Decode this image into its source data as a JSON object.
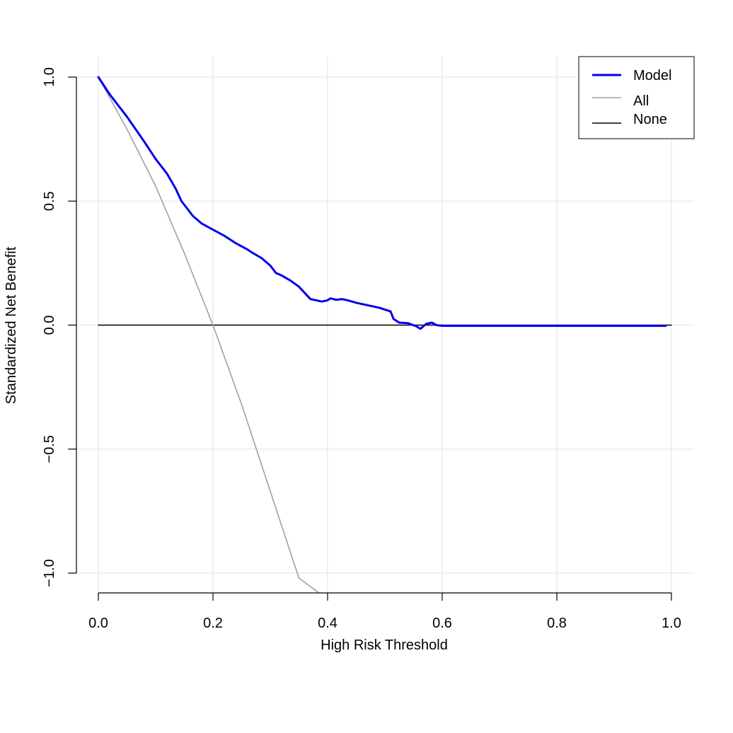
{
  "chart_data": {
    "type": "line",
    "title": "",
    "xlabel": "High Risk Threshold",
    "ylabel": "Standardized Net Benefit",
    "xlim": [
      0.0,
      1.0
    ],
    "ylim": [
      -1.0,
      1.0
    ],
    "xticks": [
      "0.0",
      "0.2",
      "0.4",
      "0.6",
      "0.8",
      "1.0"
    ],
    "yticks": [
      "−1.0",
      "−0.5",
      "0.0",
      "0.5",
      "1.0"
    ],
    "grid": true,
    "legend_position": "top-right",
    "series": [
      {
        "name": "Model",
        "color": "#0000ee",
        "x": [
          0.0,
          0.02,
          0.05,
          0.08,
          0.1,
          0.12,
          0.135,
          0.145,
          0.155,
          0.165,
          0.18,
          0.2,
          0.22,
          0.24,
          0.26,
          0.27,
          0.285,
          0.3,
          0.31,
          0.32,
          0.335,
          0.35,
          0.36,
          0.37,
          0.38,
          0.39,
          0.4,
          0.405,
          0.415,
          0.425,
          0.435,
          0.45,
          0.47,
          0.49,
          0.51,
          0.515,
          0.525,
          0.54,
          0.555,
          0.562,
          0.572,
          0.582,
          0.59,
          0.6,
          0.7,
          0.8,
          0.9,
          0.99
        ],
        "y": [
          1.0,
          0.93,
          0.84,
          0.74,
          0.67,
          0.61,
          0.55,
          0.5,
          0.47,
          0.44,
          0.41,
          0.385,
          0.36,
          0.33,
          0.305,
          0.29,
          0.27,
          0.24,
          0.21,
          0.2,
          0.18,
          0.155,
          0.13,
          0.105,
          0.1,
          0.095,
          0.1,
          0.108,
          0.102,
          0.105,
          0.1,
          0.09,
          0.08,
          0.07,
          0.055,
          0.025,
          0.01,
          0.008,
          -0.005,
          -0.015,
          0.005,
          0.01,
          0.0,
          -0.003,
          -0.003,
          -0.003,
          -0.003,
          -0.003
        ]
      },
      {
        "name": "All",
        "color": "#a0a0a0",
        "x": [
          0.0,
          0.05,
          0.1,
          0.15,
          0.2,
          0.25,
          0.3,
          0.35,
          0.385
        ],
        "y": [
          1.0,
          0.79,
          0.56,
          0.29,
          0.0,
          -0.32,
          -0.67,
          -1.02,
          -1.08
        ]
      },
      {
        "name": "None",
        "color": "#000000",
        "x": [
          0.0,
          1.0
        ],
        "y": [
          0.0,
          0.0
        ]
      }
    ]
  }
}
